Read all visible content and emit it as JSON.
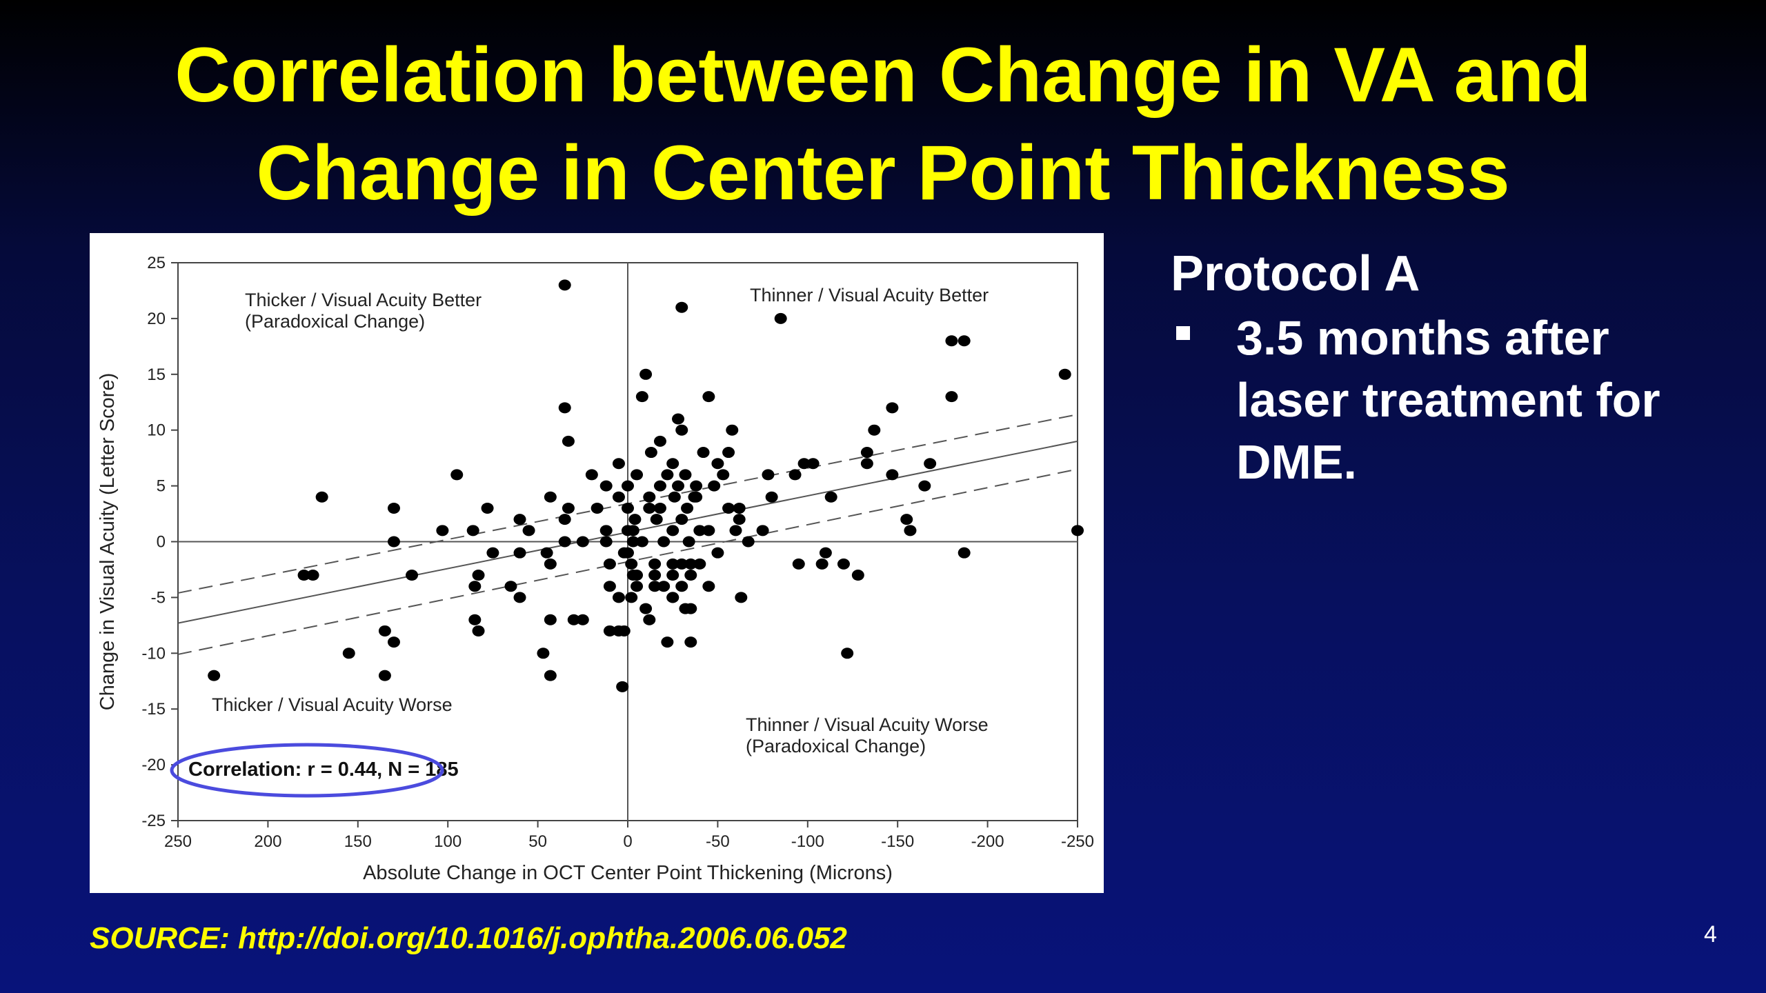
{
  "slide": {
    "title_line1": "Correlation between Change in VA and",
    "title_line2": "Change in Center Point Thickness",
    "side_heading": "Protocol A",
    "bullet": "3.5 months after laser treatment for DME.",
    "source": "SOURCE: http://doi.org/10.1016/j.ophtha.2006.06.052",
    "page_number": "4",
    "colors": {
      "background": "#07105e",
      "title": "#ffff00",
      "ellipse": "#4b4bde"
    }
  },
  "chart_data": {
    "type": "scatter",
    "xlabel": "Absolute Change in OCT Center Point Thickening (Microns)",
    "ylabel": "Change in Visual Acuity (Letter Score)",
    "xlim": [
      250,
      -250
    ],
    "ylim": [
      -25,
      25
    ],
    "x_ticks": [
      250,
      200,
      150,
      100,
      50,
      0,
      -50,
      -100,
      -150,
      -200,
      -250
    ],
    "y_ticks": [
      25,
      20,
      15,
      10,
      5,
      0,
      -5,
      -10,
      -15,
      -20,
      -25
    ],
    "quadrant_labels": {
      "top_left": [
        "Thicker / Visual Acuity Better",
        "(Paradoxical Change)"
      ],
      "top_right": [
        "Thinner / Visual Acuity  Better"
      ],
      "bottom_left": [
        "Thicker / Visual Acuity Worse"
      ],
      "bottom_right": [
        "Thinner / Visual Acuity Worse",
        "(Paradoxical Change)"
      ]
    },
    "annotation": "Correlation: r = 0.44, N = 185",
    "regression": {
      "left": [
        250,
        -7.3
      ],
      "right": [
        -250,
        9.0
      ]
    },
    "ci_upper": {
      "left": [
        250,
        -4.6
      ],
      "right": [
        -250,
        11.4
      ]
    },
    "ci_lower": {
      "left": [
        250,
        -10.1
      ],
      "right": [
        -250,
        6.5
      ]
    },
    "points": [
      [
        35,
        23
      ],
      [
        -30,
        21
      ],
      [
        -85,
        20
      ],
      [
        -180,
        18
      ],
      [
        -187,
        18
      ],
      [
        -243,
        15
      ],
      [
        -10,
        15
      ],
      [
        -8,
        13
      ],
      [
        -45,
        13
      ],
      [
        -180,
        13
      ],
      [
        35,
        12
      ],
      [
        -28,
        11
      ],
      [
        -30,
        10
      ],
      [
        -58,
        10
      ],
      [
        -137,
        10
      ],
      [
        -147,
        12
      ],
      [
        33,
        9
      ],
      [
        -18,
        9
      ],
      [
        -13,
        8
      ],
      [
        -42,
        8
      ],
      [
        -56,
        8
      ],
      [
        -133,
        8
      ],
      [
        -50,
        7
      ],
      [
        -98,
        7
      ],
      [
        -103,
        7
      ],
      [
        -133,
        7
      ],
      [
        -168,
        7
      ],
      [
        5,
        7
      ],
      [
        -25,
        7
      ],
      [
        95,
        6
      ],
      [
        -53,
        6
      ],
      [
        -78,
        6
      ],
      [
        -93,
        6
      ],
      [
        -147,
        6
      ],
      [
        20,
        6
      ],
      [
        -5,
        6
      ],
      [
        -22,
        6
      ],
      [
        -32,
        6
      ],
      [
        -165,
        5
      ],
      [
        0,
        5
      ],
      [
        12,
        5
      ],
      [
        -38,
        5
      ],
      [
        -48,
        5
      ],
      [
        -18,
        5
      ],
      [
        -28,
        5
      ],
      [
        170,
        4
      ],
      [
        43,
        4
      ],
      [
        -38,
        4
      ],
      [
        -80,
        4
      ],
      [
        -113,
        4
      ],
      [
        5,
        4
      ],
      [
        -12,
        4
      ],
      [
        -26,
        4
      ],
      [
        -37,
        4
      ],
      [
        -12,
        3
      ],
      [
        130,
        3
      ],
      [
        78,
        3
      ],
      [
        33,
        3
      ],
      [
        -18,
        3
      ],
      [
        -56,
        3
      ],
      [
        -62,
        3
      ],
      [
        17,
        3
      ],
      [
        0,
        3
      ],
      [
        -33,
        3
      ],
      [
        60,
        2
      ],
      [
        35,
        2
      ],
      [
        -4,
        2
      ],
      [
        -16,
        2
      ],
      [
        -30,
        2
      ],
      [
        -62,
        2
      ],
      [
        -155,
        2
      ],
      [
        -157,
        1
      ],
      [
        -250,
        1
      ],
      [
        103,
        1
      ],
      [
        86,
        1
      ],
      [
        55,
        1
      ],
      [
        -3,
        1
      ],
      [
        -25,
        1
      ],
      [
        -40,
        1
      ],
      [
        -60,
        1
      ],
      [
        -75,
        1
      ],
      [
        -45,
        1
      ],
      [
        0,
        1
      ],
      [
        12,
        1
      ],
      [
        35,
        0
      ],
      [
        130,
        0
      ],
      [
        25,
        0
      ],
      [
        12,
        0
      ],
      [
        -8,
        0
      ],
      [
        -20,
        0
      ],
      [
        -34,
        0
      ],
      [
        -67,
        0
      ],
      [
        -3,
        0
      ],
      [
        75,
        -1
      ],
      [
        60,
        -1
      ],
      [
        45,
        -1
      ],
      [
        2,
        -1
      ],
      [
        -50,
        -1
      ],
      [
        -110,
        -1
      ],
      [
        -187,
        -1
      ],
      [
        0,
        -1
      ],
      [
        43,
        -2
      ],
      [
        -2,
        -2
      ],
      [
        -15,
        -2
      ],
      [
        -25,
        -2
      ],
      [
        -30,
        -2
      ],
      [
        -35,
        -2
      ],
      [
        -40,
        -2
      ],
      [
        -95,
        -2
      ],
      [
        -108,
        -2
      ],
      [
        -120,
        -2
      ],
      [
        10,
        -2
      ],
      [
        120,
        -3
      ],
      [
        -5,
        -3
      ],
      [
        -15,
        -3
      ],
      [
        -25,
        -3
      ],
      [
        -35,
        -3
      ],
      [
        -128,
        -3
      ],
      [
        -3,
        -3
      ],
      [
        83,
        -3
      ],
      [
        -5,
        -4
      ],
      [
        -20,
        -4
      ],
      [
        -45,
        -4
      ],
      [
        85,
        -4
      ],
      [
        65,
        -4
      ],
      [
        10,
        -4
      ],
      [
        -15,
        -4
      ],
      [
        -30,
        -4
      ],
      [
        60,
        -5
      ],
      [
        -2,
        -5
      ],
      [
        -25,
        -5
      ],
      [
        -63,
        -5
      ],
      [
        5,
        -5
      ],
      [
        180,
        -3
      ],
      [
        175,
        -3
      ],
      [
        -10,
        -6
      ],
      [
        -32,
        -6
      ],
      [
        -35,
        -6
      ],
      [
        -25,
        -5
      ],
      [
        85,
        -7
      ],
      [
        43,
        -7
      ],
      [
        30,
        -7
      ],
      [
        25,
        -7
      ],
      [
        -12,
        -7
      ],
      [
        135,
        -8
      ],
      [
        83,
        -8
      ],
      [
        10,
        -8
      ],
      [
        5,
        -8
      ],
      [
        2,
        -8
      ],
      [
        130,
        -9
      ],
      [
        -22,
        -9
      ],
      [
        -35,
        -9
      ],
      [
        155,
        -10
      ],
      [
        47,
        -10
      ],
      [
        -122,
        -10
      ],
      [
        230,
        -12
      ],
      [
        135,
        -12
      ],
      [
        43,
        -12
      ],
      [
        3,
        -13
      ]
    ]
  }
}
